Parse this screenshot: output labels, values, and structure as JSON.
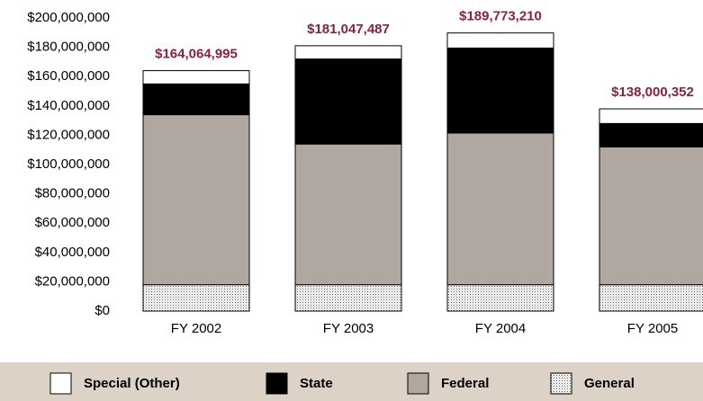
{
  "chart_data": {
    "type": "stacked_bar",
    "categories": [
      "FY 2002",
      "FY 2003",
      "FY 2004",
      "FY 2005"
    ],
    "series": [
      {
        "name": "Special (Other)",
        "color": "#ffffff",
        "values": [
          9065000,
          9047000,
          10273000,
          10000000
        ]
      },
      {
        "name": "State",
        "color": "#000000",
        "values": [
          21000000,
          58000000,
          58000000,
          16000000
        ]
      },
      {
        "name": "Federal",
        "color": "#b0a8a0",
        "values": [
          116000000,
          96000000,
          103500000,
          94000000
        ]
      },
      {
        "name": "General",
        "color": "#ffffff",
        "pattern": "dots",
        "values": [
          18000000,
          18000000,
          18000000,
          18000000
        ]
      }
    ],
    "totals": [
      164064995,
      181047487,
      189773210,
      138000352
    ],
    "value_labels": [
      "$164,064,995",
      "$181,047,487",
      "$189,773,210",
      "$138,000,352"
    ],
    "ylim": [
      0,
      200000000
    ],
    "yticks": [
      {
        "value": 0,
        "label": "$0"
      },
      {
        "value": 20000000,
        "label": "$20,000,000"
      },
      {
        "value": 40000000,
        "label": "$40,000,000"
      },
      {
        "value": 60000000,
        "label": "$60,000,000"
      },
      {
        "value": 80000000,
        "label": "$80,000,000"
      },
      {
        "value": 100000000,
        "label": "$100,000,000"
      },
      {
        "value": 120000000,
        "label": "$120,000,000"
      },
      {
        "value": 140000000,
        "label": "$140,000,000"
      },
      {
        "value": 160000000,
        "label": "$160,000,000"
      },
      {
        "value": 180000000,
        "label": "$180,000,000"
      },
      {
        "value": 200000000,
        "label": "$200,000,000"
      }
    ],
    "grid": false,
    "legend": "bottom"
  }
}
